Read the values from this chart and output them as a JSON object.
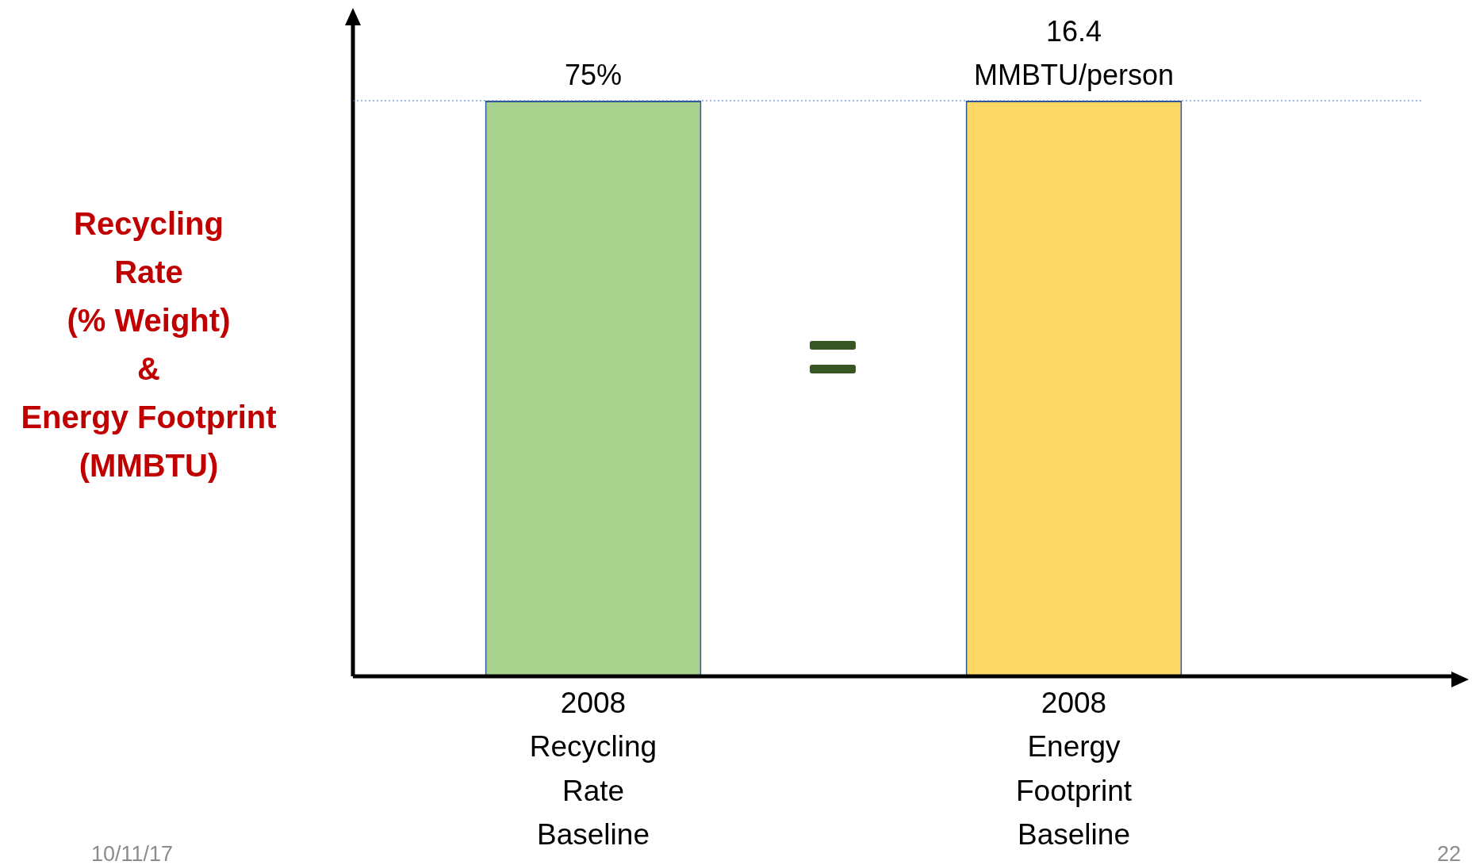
{
  "chart_data": {
    "type": "bar",
    "ylabel": "Recycling\nRate\n(% Weight)\n&\nEnergy Footprint\n(MMBTU)",
    "categories": [
      "2008\nRecycling\nRate\nBaseline",
      "2008\nEnergy\nFootprint\nBaseline"
    ],
    "series": [
      {
        "color": "#a9d18e",
        "values": [
          75,
          null
        ],
        "value_labels": [
          "75%",
          null
        ]
      },
      {
        "color": "#ffd966",
        "values": [
          null,
          16.4
        ],
        "value_labels": [
          null,
          "16.4\nMMBTU/person"
        ],
        "axis": "y2"
      }
    ],
    "ylim": [
      0,
      75
    ],
    "y2lim": [
      0,
      16.4
    ],
    "tick_labels": "x",
    "ref_lines": [
      {
        "axis": "y",
        "value": 75,
        "color": "#4472c4",
        "line_style": "dotted"
      }
    ],
    "annotations": [
      "10/11/17",
      "22"
    ],
    "grid": false,
    "legend": false
  }
}
